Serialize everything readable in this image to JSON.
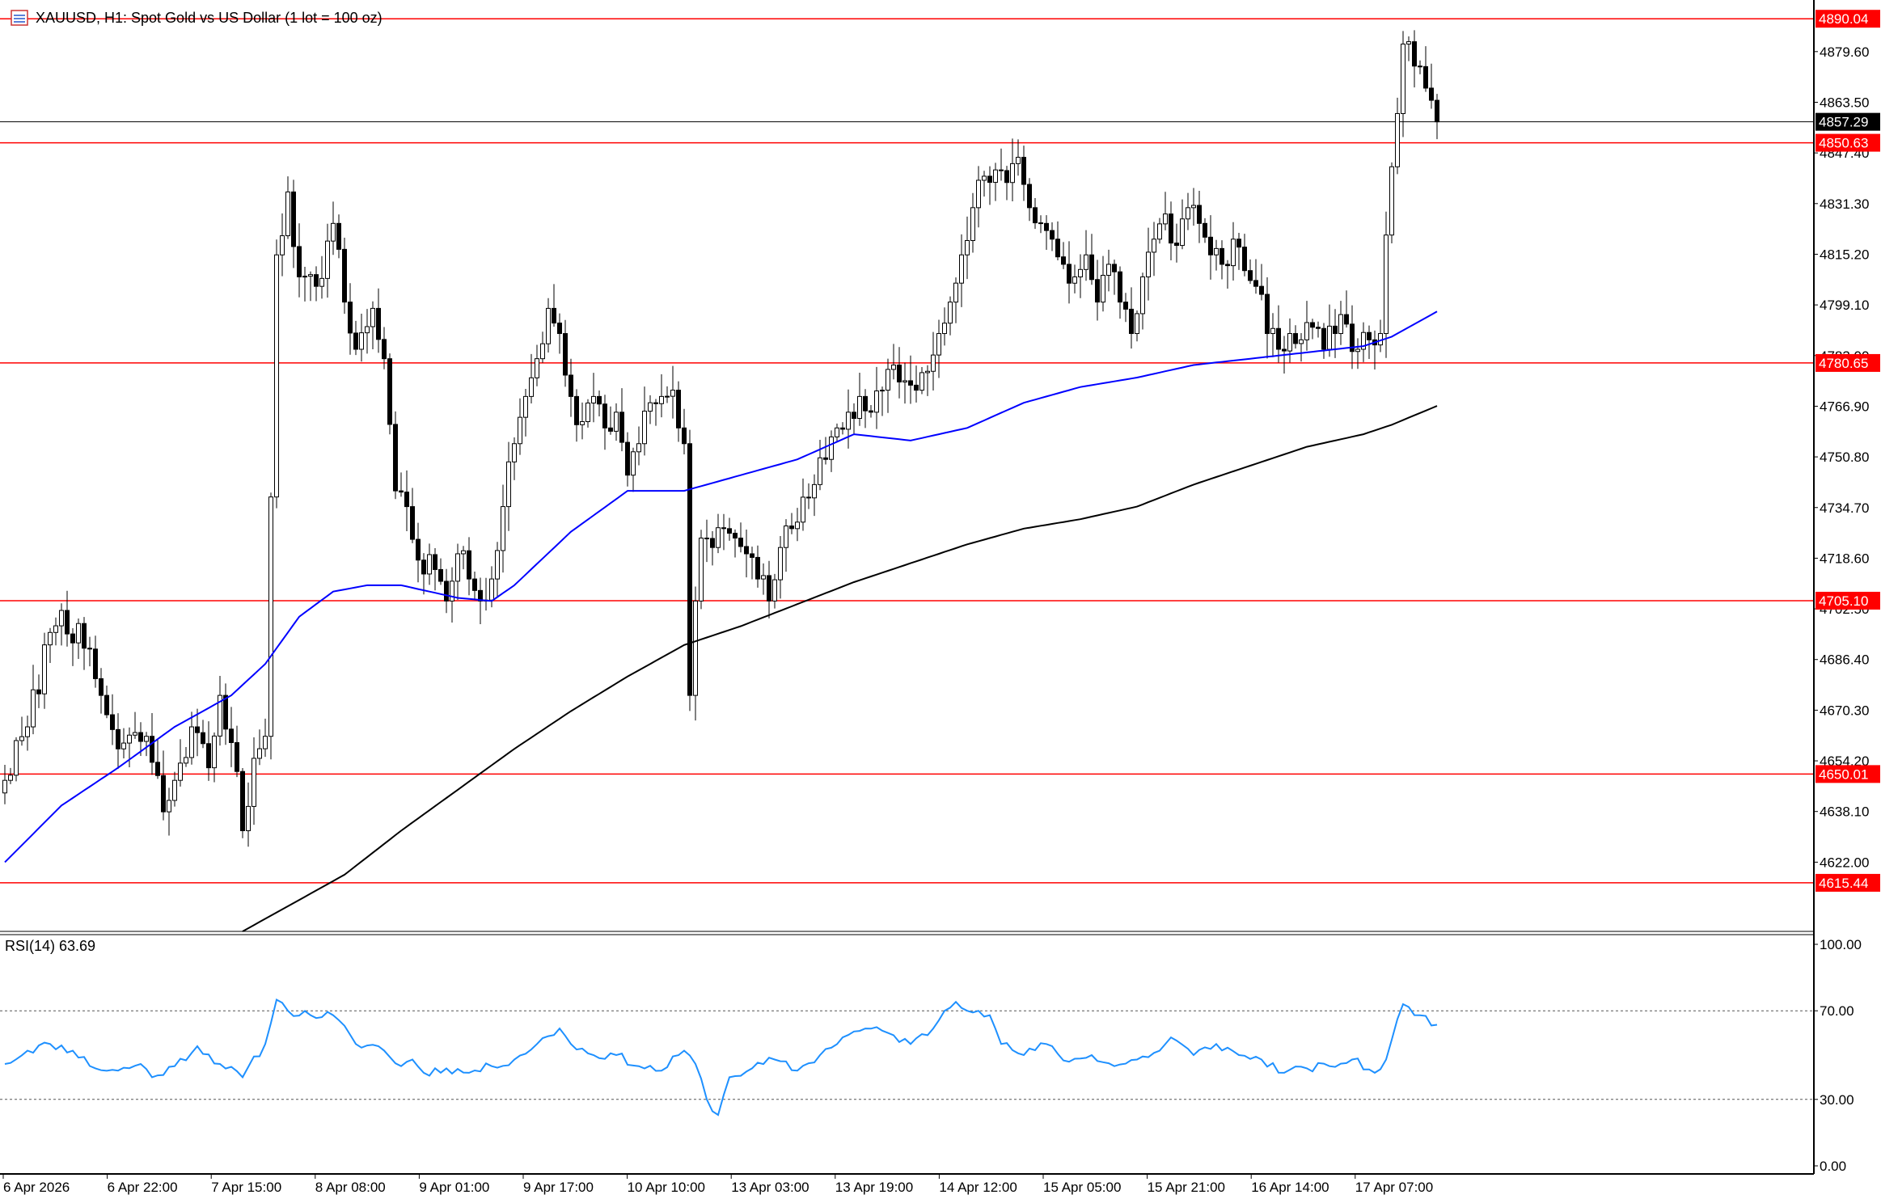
{
  "header": {
    "symbol_text": "XAUUSD, H1:  Spot Gold vs US Dollar (1 lot = 100 oz)"
  },
  "colors": {
    "candle": "#000000",
    "ma_fast": "#0000ff",
    "ma_slow": "#000000",
    "level": "#ff0000",
    "rsi": "#1e90ff",
    "axis": "#000000",
    "tag_text": "#ffffff"
  },
  "chart_data": [
    {
      "type": "candlestick",
      "title": "XAUUSD, H1:  Spot Gold vs US Dollar (1 lot = 100 oz)",
      "ylim": [
        4600,
        4896
      ],
      "y_ticks": [
        "4879.60",
        "4863.50",
        "4847.40",
        "4831.30",
        "4815.20",
        "4799.10",
        "4783.00",
        "4766.90",
        "4750.80",
        "4734.70",
        "4718.60",
        "4702.50",
        "4686.40",
        "4670.30",
        "4654.20",
        "4638.10",
        "4622.00"
      ],
      "x_ticks": [
        "6 Apr 2026",
        "6 Apr 22:00",
        "7 Apr 15:00",
        "8 Apr 08:00",
        "9 Apr 01:00",
        "9 Apr 17:00",
        "10 Apr 10:00",
        "13 Apr 03:00",
        "13 Apr 19:00",
        "14 Apr 12:00",
        "15 Apr 05:00",
        "15 Apr 21:00",
        "16 Apr 14:00",
        "17 Apr 07:00"
      ],
      "levels": [
        {
          "price": 4890.04,
          "label": "4890.04"
        },
        {
          "price": 4850.63,
          "label": "4850.63"
        },
        {
          "price": 4780.65,
          "label": "4780.65"
        },
        {
          "price": 4705.1,
          "label": "4705.10"
        },
        {
          "price": 4650.01,
          "label": "4650.01"
        },
        {
          "price": 4615.44,
          "label": "4615.44"
        }
      ],
      "current_price": {
        "price": 4857.29,
        "label": "4857.29"
      },
      "close_anchors": [
        [
          0,
          4648
        ],
        [
          4,
          4665
        ],
        [
          8,
          4695
        ],
        [
          10,
          4702
        ],
        [
          14,
          4690
        ],
        [
          17,
          4675
        ],
        [
          20,
          4658
        ],
        [
          25,
          4662
        ],
        [
          28,
          4638
        ],
        [
          30,
          4648
        ],
        [
          33,
          4665
        ],
        [
          36,
          4652
        ],
        [
          38,
          4675
        ],
        [
          40,
          4660
        ],
        [
          42,
          4632
        ],
        [
          44,
          4655
        ],
        [
          46,
          4662
        ],
        [
          48,
          4815
        ],
        [
          50,
          4835
        ],
        [
          52,
          4808
        ],
        [
          55,
          4805
        ],
        [
          58,
          4825
        ],
        [
          60,
          4800
        ],
        [
          62,
          4785
        ],
        [
          65,
          4798
        ],
        [
          67,
          4782
        ],
        [
          69,
          4740
        ],
        [
          71,
          4735
        ],
        [
          73,
          4718
        ],
        [
          76,
          4715
        ],
        [
          78,
          4705
        ],
        [
          80,
          4720
        ],
        [
          82,
          4712
        ],
        [
          84,
          4705
        ],
        [
          86,
          4712
        ],
        [
          88,
          4735
        ],
        [
          90,
          4755
        ],
        [
          92,
          4770
        ],
        [
          94,
          4782
        ],
        [
          96,
          4798
        ],
        [
          98,
          4790
        ],
        [
          100,
          4770
        ],
        [
          102,
          4762
        ],
        [
          104,
          4770
        ],
        [
          106,
          4760
        ],
        [
          108,
          4765
        ],
        [
          110,
          4745
        ],
        [
          112,
          4755
        ],
        [
          114,
          4768
        ],
        [
          116,
          4770
        ],
        [
          118,
          4772
        ],
        [
          119,
          4760
        ],
        [
          120,
          4755
        ],
        [
          121,
          4675
        ],
        [
          122,
          4705
        ],
        [
          123,
          4725
        ],
        [
          125,
          4722
        ],
        [
          127,
          4728
        ],
        [
          129,
          4725
        ],
        [
          131,
          4720
        ],
        [
          133,
          4712
        ],
        [
          135,
          4705
        ],
        [
          137,
          4722
        ],
        [
          139,
          4728
        ],
        [
          141,
          4738
        ],
        [
          143,
          4742
        ],
        [
          145,
          4750
        ],
        [
          147,
          4760
        ],
        [
          149,
          4765
        ],
        [
          151,
          4770
        ],
        [
          153,
          4765
        ],
        [
          155,
          4772
        ],
        [
          157,
          4780
        ],
        [
          159,
          4775
        ],
        [
          161,
          4772
        ],
        [
          163,
          4778
        ],
        [
          165,
          4790
        ],
        [
          167,
          4800
        ],
        [
          169,
          4815
        ],
        [
          171,
          4830
        ],
        [
          173,
          4840
        ],
        [
          175,
          4842
        ],
        [
          177,
          4838
        ],
        [
          179,
          4846
        ],
        [
          181,
          4830
        ],
        [
          183,
          4825
        ],
        [
          185,
          4820
        ],
        [
          187,
          4812
        ],
        [
          189,
          4808
        ],
        [
          191,
          4815
        ],
        [
          193,
          4800
        ],
        [
          195,
          4812
        ],
        [
          197,
          4800
        ],
        [
          199,
          4790
        ],
        [
          201,
          4808
        ],
        [
          203,
          4820
        ],
        [
          205,
          4828
        ],
        [
          207,
          4818
        ],
        [
          209,
          4830
        ],
        [
          211,
          4825
        ],
        [
          213,
          4815
        ],
        [
          215,
          4812
        ],
        [
          217,
          4820
        ],
        [
          219,
          4810
        ],
        [
          221,
          4805
        ],
        [
          223,
          4790
        ],
        [
          225,
          4785
        ],
        [
          227,
          4790
        ],
        [
          229,
          4788
        ],
        [
          231,
          4792
        ],
        [
          233,
          4785
        ],
        [
          235,
          4790
        ],
        [
          237,
          4793
        ],
        [
          239,
          4785
        ],
        [
          241,
          4788
        ],
        [
          243,
          4790
        ],
        [
          245,
          4843
        ],
        [
          247,
          4882
        ],
        [
          249,
          4875
        ],
        [
          251,
          4868
        ],
        [
          253,
          4857.29
        ]
      ],
      "ma_fast_anchors": [
        [
          0,
          4622
        ],
        [
          10,
          4640
        ],
        [
          20,
          4652
        ],
        [
          30,
          4665
        ],
        [
          40,
          4675
        ],
        [
          46,
          4685
        ],
        [
          52,
          4700
        ],
        [
          58,
          4708
        ],
        [
          64,
          4710
        ],
        [
          70,
          4710
        ],
        [
          80,
          4706
        ],
        [
          86,
          4705
        ],
        [
          90,
          4710
        ],
        [
          100,
          4727
        ],
        [
          110,
          4740
        ],
        [
          120,
          4740
        ],
        [
          130,
          4745
        ],
        [
          140,
          4750
        ],
        [
          150,
          4758
        ],
        [
          160,
          4756
        ],
        [
          170,
          4760
        ],
        [
          180,
          4768
        ],
        [
          190,
          4773
        ],
        [
          200,
          4776
        ],
        [
          210,
          4780
        ],
        [
          220,
          4782
        ],
        [
          230,
          4784
        ],
        [
          240,
          4786
        ],
        [
          245,
          4789
        ],
        [
          253,
          4797
        ]
      ],
      "ma_slow_anchors": [
        [
          42,
          4600
        ],
        [
          50,
          4608
        ],
        [
          60,
          4618
        ],
        [
          70,
          4632
        ],
        [
          80,
          4645
        ],
        [
          90,
          4658
        ],
        [
          100,
          4670
        ],
        [
          110,
          4681
        ],
        [
          120,
          4691
        ],
        [
          130,
          4697
        ],
        [
          140,
          4704
        ],
        [
          150,
          4711
        ],
        [
          160,
          4717
        ],
        [
          170,
          4723
        ],
        [
          180,
          4728
        ],
        [
          190,
          4731
        ],
        [
          200,
          4735
        ],
        [
          210,
          4742
        ],
        [
          220,
          4748
        ],
        [
          230,
          4754
        ],
        [
          240,
          4758
        ],
        [
          245,
          4761
        ],
        [
          253,
          4767
        ]
      ]
    },
    {
      "type": "line",
      "title": "RSI(14) 63.69",
      "ylim": [
        0,
        100
      ],
      "y_ticks": [
        "100.00",
        "70.00",
        "30.00",
        "0.00"
      ],
      "levels": [
        70,
        30
      ],
      "series": [
        {
          "name": "RSI(14) 63.69",
          "anchors": [
            [
              0,
              46
            ],
            [
              4,
              52
            ],
            [
              8,
              55
            ],
            [
              12,
              52
            ],
            [
              16,
              44
            ],
            [
              20,
              43
            ],
            [
              24,
              46
            ],
            [
              26,
              40
            ],
            [
              30,
              45
            ],
            [
              34,
              54
            ],
            [
              38,
              46
            ],
            [
              42,
              40
            ],
            [
              46,
              55
            ],
            [
              48,
              75
            ],
            [
              50,
              70
            ],
            [
              54,
              68
            ],
            [
              58,
              68
            ],
            [
              62,
              55
            ],
            [
              66,
              54
            ],
            [
              70,
              45
            ],
            [
              72,
              48
            ],
            [
              74,
              42
            ],
            [
              78,
              44
            ],
            [
              82,
              42
            ],
            [
              86,
              45
            ],
            [
              90,
              48
            ],
            [
              94,
              55
            ],
            [
              98,
              62
            ],
            [
              100,
              55
            ],
            [
              104,
              50
            ],
            [
              108,
              50
            ],
            [
              112,
              45
            ],
            [
              116,
              43
            ],
            [
              120,
              52
            ],
            [
              122,
              46
            ],
            [
              124,
              30
            ],
            [
              126,
              23
            ],
            [
              128,
              40
            ],
            [
              132,
              44
            ],
            [
              136,
              48
            ],
            [
              140,
              43
            ],
            [
              144,
              50
            ],
            [
              148,
              58
            ],
            [
              152,
              62
            ],
            [
              156,
              60
            ],
            [
              160,
              55
            ],
            [
              164,
              62
            ],
            [
              166,
              70
            ],
            [
              168,
              74
            ],
            [
              172,
              70
            ],
            [
              174,
              68
            ],
            [
              176,
              55
            ],
            [
              180,
              50
            ],
            [
              184,
              55
            ],
            [
              188,
              47
            ],
            [
              192,
              50
            ],
            [
              196,
              45
            ],
            [
              200,
              48
            ],
            [
              204,
              52
            ],
            [
              206,
              58
            ],
            [
              210,
              50
            ],
            [
              214,
              55
            ],
            [
              218,
              50
            ],
            [
              222,
              48
            ],
            [
              226,
              42
            ],
            [
              230,
              44
            ],
            [
              234,
              45
            ],
            [
              238,
              48
            ],
            [
              242,
              42
            ],
            [
              244,
              48
            ],
            [
              247,
              73
            ],
            [
              250,
              68
            ],
            [
              253,
              63.69
            ]
          ]
        }
      ]
    }
  ]
}
